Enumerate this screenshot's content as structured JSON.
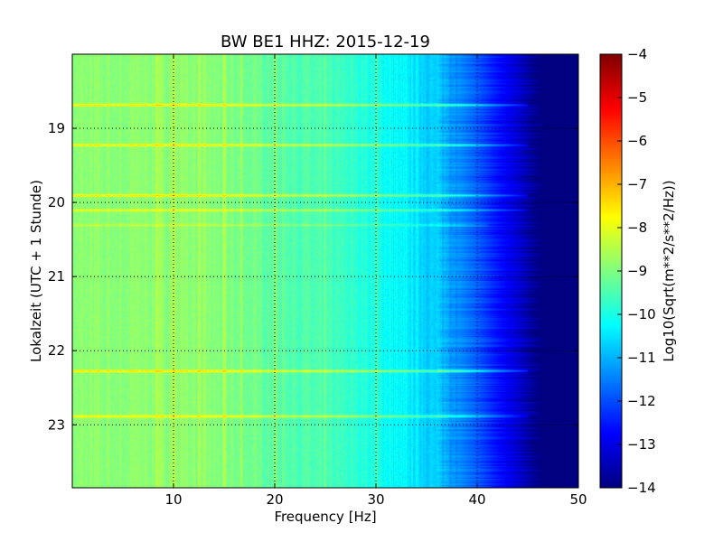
{
  "chart_data": {
    "type": "heatmap",
    "title": "BW BE1 HHZ: 2015-12-19",
    "xlabel": "Frequency [Hz]",
    "ylabel": "Lokalzeit (UTC + 1 Stunde)",
    "xlim": [
      0,
      50
    ],
    "ylim": [
      18.0,
      23.85
    ],
    "y_inverted": true,
    "x_ticks": [
      10,
      20,
      30,
      40,
      50
    ],
    "x_tick_labels": [
      "10",
      "20",
      "30",
      "40",
      "50"
    ],
    "y_ticks": [
      19,
      20,
      21,
      22,
      23
    ],
    "y_tick_labels": [
      "19",
      "20",
      "21",
      "22",
      "23"
    ],
    "grid": true,
    "colorbar": {
      "label": "Log10(Sqrt(m**2/s**2/Hz))",
      "min": -14,
      "max": -4,
      "ticks": [
        -4,
        -5,
        -6,
        -7,
        -8,
        -9,
        -10,
        -11,
        -12,
        -13,
        -14
      ],
      "tick_labels": [
        "−4",
        "−5",
        "−6",
        "−7",
        "−8",
        "−9",
        "−10",
        "−11",
        "−12",
        "−13",
        "−14"
      ],
      "colormap": "jet"
    },
    "spectrum_profile": {
      "frequency_hz": [
        0,
        5,
        10,
        15,
        20,
        25,
        28,
        30,
        32,
        34,
        36,
        38,
        40,
        42,
        44,
        46,
        50
      ],
      "log_amplitude": [
        -8.9,
        -8.9,
        -8.8,
        -9.0,
        -9.3,
        -9.6,
        -9.8,
        -10.0,
        -10.3,
        -10.5,
        -10.8,
        -11.3,
        -11.9,
        -12.6,
        -13.2,
        -14.0,
        -14.0
      ]
    },
    "horizontal_bands": [
      {
        "time": 18.68,
        "strength": 1.5,
        "max_freq_hz": 45
      },
      {
        "time": 19.22,
        "strength": 1.4,
        "max_freq_hz": 45
      },
      {
        "time": 19.9,
        "strength": 1.4,
        "max_freq_hz": 45
      },
      {
        "time": 20.1,
        "strength": 1.1,
        "max_freq_hz": 45
      },
      {
        "time": 20.3,
        "strength": 0.6,
        "max_freq_hz": 41
      },
      {
        "time": 22.27,
        "strength": 1.6,
        "max_freq_hz": 45
      },
      {
        "time": 22.88,
        "strength": 1.4,
        "max_freq_hz": 45
      }
    ],
    "vertical_lines_hz": [
      8.3,
      10,
      12.5,
      15,
      16.7,
      20,
      25,
      30
    ],
    "noise_seed": 7
  }
}
